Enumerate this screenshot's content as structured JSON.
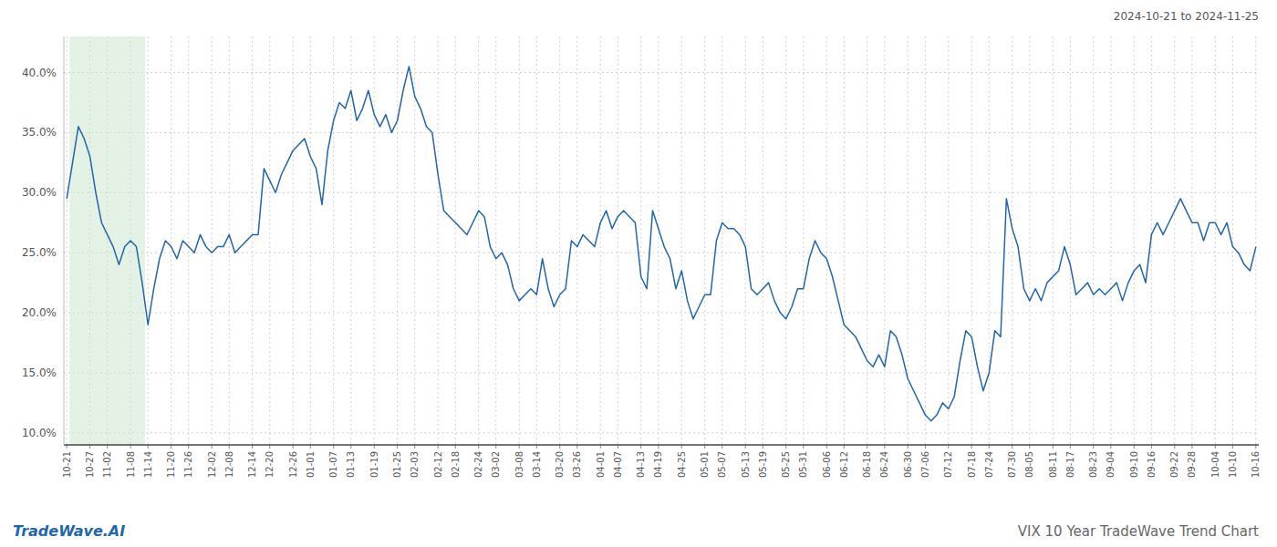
{
  "chart_data": {
    "type": "line",
    "title": "VIX 10 Year TradeWave Trend Chart",
    "subtitle": "2024-10-21 to 2024-11-25",
    "annotations": [
      "TradeWave.AI"
    ],
    "color": "#2266aa",
    "grid": true,
    "ylim": [
      9.0,
      43.0
    ],
    "yticks": [
      {
        "value": 10.0,
        "label": "10.0%"
      },
      {
        "value": 15.0,
        "label": "15.0%"
      },
      {
        "value": 20.0,
        "label": "20.0%"
      },
      {
        "value": 25.0,
        "label": "25.0%"
      },
      {
        "value": 30.0,
        "label": "30.0%"
      },
      {
        "value": 35.0,
        "label": "35.0%"
      },
      {
        "value": 40.0,
        "label": "40.0%"
      }
    ],
    "shade": {
      "start": 1,
      "end": 13,
      "color": "#c8e6c9"
    },
    "categories": [
      "10-21",
      null,
      null,
      null,
      "10-27",
      null,
      null,
      "11-02",
      null,
      null,
      null,
      "11-08",
      null,
      null,
      "11-14",
      null,
      null,
      null,
      "11-20",
      null,
      null,
      "11-26",
      null,
      null,
      null,
      "12-02",
      null,
      null,
      "12-08",
      null,
      null,
      null,
      "12-14",
      null,
      null,
      "12-20",
      null,
      null,
      null,
      "12-26",
      null,
      null,
      "01-01",
      null,
      null,
      null,
      "01-07",
      null,
      null,
      "01-13",
      null,
      null,
      null,
      "01-19",
      null,
      null,
      null,
      "01-25",
      null,
      null,
      "02-03",
      null,
      null,
      null,
      "02-12",
      null,
      null,
      "02-18",
      null,
      null,
      null,
      "02-24",
      null,
      null,
      "03-02",
      null,
      null,
      null,
      "03-08",
      null,
      null,
      "03-14",
      null,
      null,
      null,
      "03-20",
      null,
      null,
      "03-26",
      null,
      null,
      null,
      "04-01",
      null,
      null,
      "04-07",
      null,
      null,
      null,
      "04-13",
      null,
      null,
      "04-19",
      null,
      null,
      null,
      "04-25",
      null,
      null,
      null,
      "05-01",
      null,
      null,
      "05-07",
      null,
      null,
      null,
      "05-13",
      null,
      null,
      "05-19",
      null,
      null,
      null,
      "05-25",
      null,
      null,
      "05-31",
      null,
      null,
      null,
      "06-06",
      null,
      null,
      "06-12",
      null,
      null,
      null,
      "06-18",
      null,
      null,
      "06-24",
      null,
      null,
      null,
      "06-30",
      null,
      null,
      "07-06",
      null,
      null,
      null,
      "07-12",
      null,
      null,
      null,
      "07-18",
      null,
      null,
      "07-24",
      null,
      null,
      null,
      "07-30",
      null,
      null,
      "08-05",
      null,
      null,
      null,
      "08-11",
      null,
      null,
      "08-17",
      null,
      null,
      null,
      "08-23",
      null,
      null,
      "09-04",
      null,
      null,
      null,
      "09-10",
      null,
      null,
      "09-16",
      null,
      null,
      null,
      "09-22",
      null,
      null,
      "09-28",
      null,
      null,
      null,
      "10-04",
      null,
      null,
      "10-10",
      null,
      null,
      null,
      "10-16"
    ],
    "values": [
      29.5,
      32.5,
      35.5,
      34.5,
      33.0,
      30.0,
      27.5,
      26.5,
      25.5,
      24.0,
      25.5,
      26.0,
      25.5,
      22.5,
      19.0,
      22.0,
      24.5,
      26.0,
      25.5,
      24.5,
      26.0,
      25.5,
      25.0,
      26.5,
      25.5,
      25.0,
      25.5,
      25.5,
      26.5,
      25.0,
      25.5,
      26.0,
      26.5,
      26.5,
      32.0,
      31.0,
      30.0,
      31.5,
      32.5,
      33.5,
      34.0,
      34.5,
      33.0,
      32.0,
      29.0,
      33.5,
      36.0,
      37.5,
      37.0,
      38.5,
      36.0,
      37.0,
      38.5,
      36.5,
      35.5,
      36.5,
      35.0,
      36.0,
      38.5,
      40.5,
      38.0,
      37.0,
      35.5,
      35.0,
      31.5,
      28.5,
      28.0,
      27.5,
      27.0,
      26.5,
      27.5,
      28.5,
      28.0,
      25.5,
      24.5,
      25.0,
      24.0,
      22.0,
      21.0,
      21.5,
      22.0,
      21.5,
      24.5,
      22.0,
      20.5,
      21.5,
      22.0,
      26.0,
      25.5,
      26.5,
      26.0,
      25.5,
      27.5,
      28.5,
      27.0,
      28.0,
      28.5,
      28.0,
      27.5,
      23.0,
      22.0,
      28.5,
      27.0,
      25.5,
      24.5,
      22.0,
      23.5,
      21.0,
      19.5,
      20.5,
      21.5,
      21.5,
      26.0,
      27.5,
      27.0,
      27.0,
      26.5,
      25.5,
      22.0,
      21.5,
      22.0,
      22.5,
      21.0,
      20.0,
      19.5,
      20.5,
      22.0,
      22.0,
      24.5,
      26.0,
      25.0,
      24.5,
      23.0,
      21.0,
      19.0,
      18.5,
      18.0,
      17.0,
      16.0,
      15.5,
      16.5,
      15.5,
      18.5,
      18.0,
      16.5,
      14.5,
      13.5,
      12.5,
      11.5,
      11.0,
      11.5,
      12.5,
      12.0,
      13.0,
      16.0,
      18.5,
      18.0,
      15.5,
      13.5,
      15.0,
      18.5,
      18.0,
      29.5,
      27.0,
      25.5,
      22.0,
      21.0,
      22.0,
      21.0,
      22.5,
      23.0,
      23.5,
      25.5,
      24.0,
      21.5,
      22.0,
      22.5,
      21.5,
      22.0,
      21.5,
      22.0,
      22.5,
      21.0,
      22.5,
      23.5,
      24.0,
      22.5,
      26.5,
      27.5,
      26.5,
      27.5,
      28.5,
      29.5,
      28.5,
      27.5,
      27.5,
      26.0,
      27.5,
      27.5,
      26.5,
      27.5,
      25.5,
      25.0,
      24.0,
      23.5,
      25.5
    ]
  }
}
